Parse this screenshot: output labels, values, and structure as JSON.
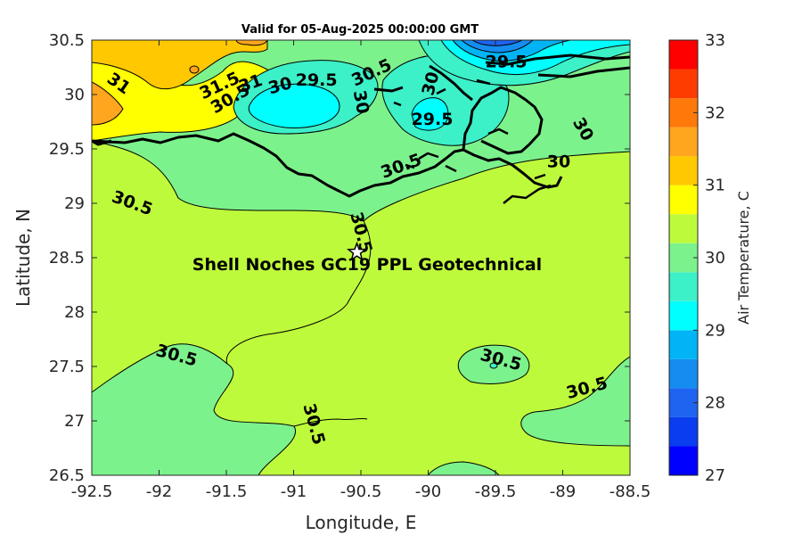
{
  "title": "Valid for 05-Aug-2025 00:00:00 GMT",
  "x_axis": {
    "label": "Longitude, E",
    "range": [
      -92.5,
      -88.5
    ],
    "ticks": [
      "-92.5",
      "-92",
      "-91.5",
      "-91",
      "-90.5",
      "-90",
      "-89.5",
      "-89",
      "-88.5"
    ]
  },
  "y_axis": {
    "label": "Latitude, N",
    "range": [
      26.5,
      30.5
    ],
    "ticks": [
      "26.5",
      "27",
      "27.5",
      "28",
      "28.5",
      "29",
      "29.5",
      "30",
      "30.5"
    ]
  },
  "colorbar": {
    "label": "Air Temperature, C",
    "range": [
      27,
      33
    ],
    "step": 0.5,
    "ticks": [
      "27",
      "28",
      "29",
      "30",
      "31",
      "32",
      "33"
    ],
    "colors": [
      "#0000ff",
      "#0a3cf0",
      "#1e64f0",
      "#148cf0",
      "#00b4f5",
      "#00ffff",
      "#3cf0c8",
      "#7cf28c",
      "#befa3c",
      "#ffff00",
      "#ffc800",
      "#ffa51e",
      "#ff780a",
      "#ff3c00",
      "#ff0000"
    ]
  },
  "site": {
    "label": "Shell Noches   GC19 PPL  Geotechnical",
    "lon": -90.53,
    "lat": 28.55,
    "marker": "star-icon"
  },
  "contour_labels": [
    {
      "text": "31",
      "lon": -92.3,
      "lat": 30.1,
      "angle": 35
    },
    {
      "text": "31.5",
      "lon": -91.55,
      "lat": 30.08,
      "angle": -25
    },
    {
      "text": "31",
      "lon": -91.32,
      "lat": 30.1,
      "angle": -20
    },
    {
      "text": "30.5",
      "lon": -91.47,
      "lat": 29.96,
      "angle": -30
    },
    {
      "text": "30",
      "lon": -91.1,
      "lat": 30.08,
      "angle": -15
    },
    {
      "text": "29.5",
      "lon": -90.83,
      "lat": 30.13,
      "angle": 0
    },
    {
      "text": "30.5",
      "lon": -90.42,
      "lat": 30.2,
      "angle": -25
    },
    {
      "text": "30",
      "lon": -90.5,
      "lat": 29.93,
      "angle": 80
    },
    {
      "text": "29.5",
      "lon": -89.97,
      "lat": 29.77,
      "angle": 0
    },
    {
      "text": "30",
      "lon": -89.98,
      "lat": 30.1,
      "angle": -75
    },
    {
      "text": "29.5",
      "lon": -89.42,
      "lat": 30.3,
      "angle": 0
    },
    {
      "text": "30",
      "lon": -88.85,
      "lat": 29.68,
      "angle": 60
    },
    {
      "text": "30",
      "lon": -89.03,
      "lat": 29.38,
      "angle": 0
    },
    {
      "text": "30.5",
      "lon": -90.2,
      "lat": 29.34,
      "angle": -20
    },
    {
      "text": "30.5",
      "lon": -92.2,
      "lat": 29.0,
      "angle": 20
    },
    {
      "text": "30.5",
      "lon": -90.5,
      "lat": 28.73,
      "angle": 75
    },
    {
      "text": "30.5",
      "lon": -91.87,
      "lat": 27.6,
      "angle": 15
    },
    {
      "text": "30.5",
      "lon": -89.46,
      "lat": 27.56,
      "angle": 15
    },
    {
      "text": "30.5",
      "lon": -88.82,
      "lat": 27.3,
      "angle": -15
    },
    {
      "text": "30.5",
      "lon": -90.85,
      "lat": 26.97,
      "angle": 75
    }
  ]
}
